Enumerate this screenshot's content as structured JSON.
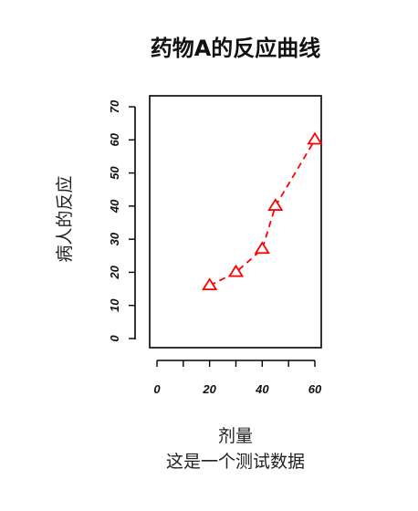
{
  "chart_data": {
    "type": "line",
    "title": "药物A的反应曲线",
    "xlabel": "剂量",
    "ylabel": "病人的反应",
    "subtitle": "这是一个测试数据",
    "x": [
      20,
      30,
      40,
      45,
      60
    ],
    "y": [
      16,
      20,
      27,
      40,
      60
    ],
    "xlim": [
      0,
      60
    ],
    "ylim": [
      0,
      70
    ],
    "xticks": [
      0,
      20,
      40,
      60
    ],
    "xminor_ticks": [
      10,
      30,
      50
    ],
    "yticks": [
      0,
      10,
      20,
      30,
      40,
      50,
      60,
      70
    ],
    "series_color": "#ff0000",
    "marker": "open-triangle",
    "line_style": "dashed",
    "grid": false
  }
}
